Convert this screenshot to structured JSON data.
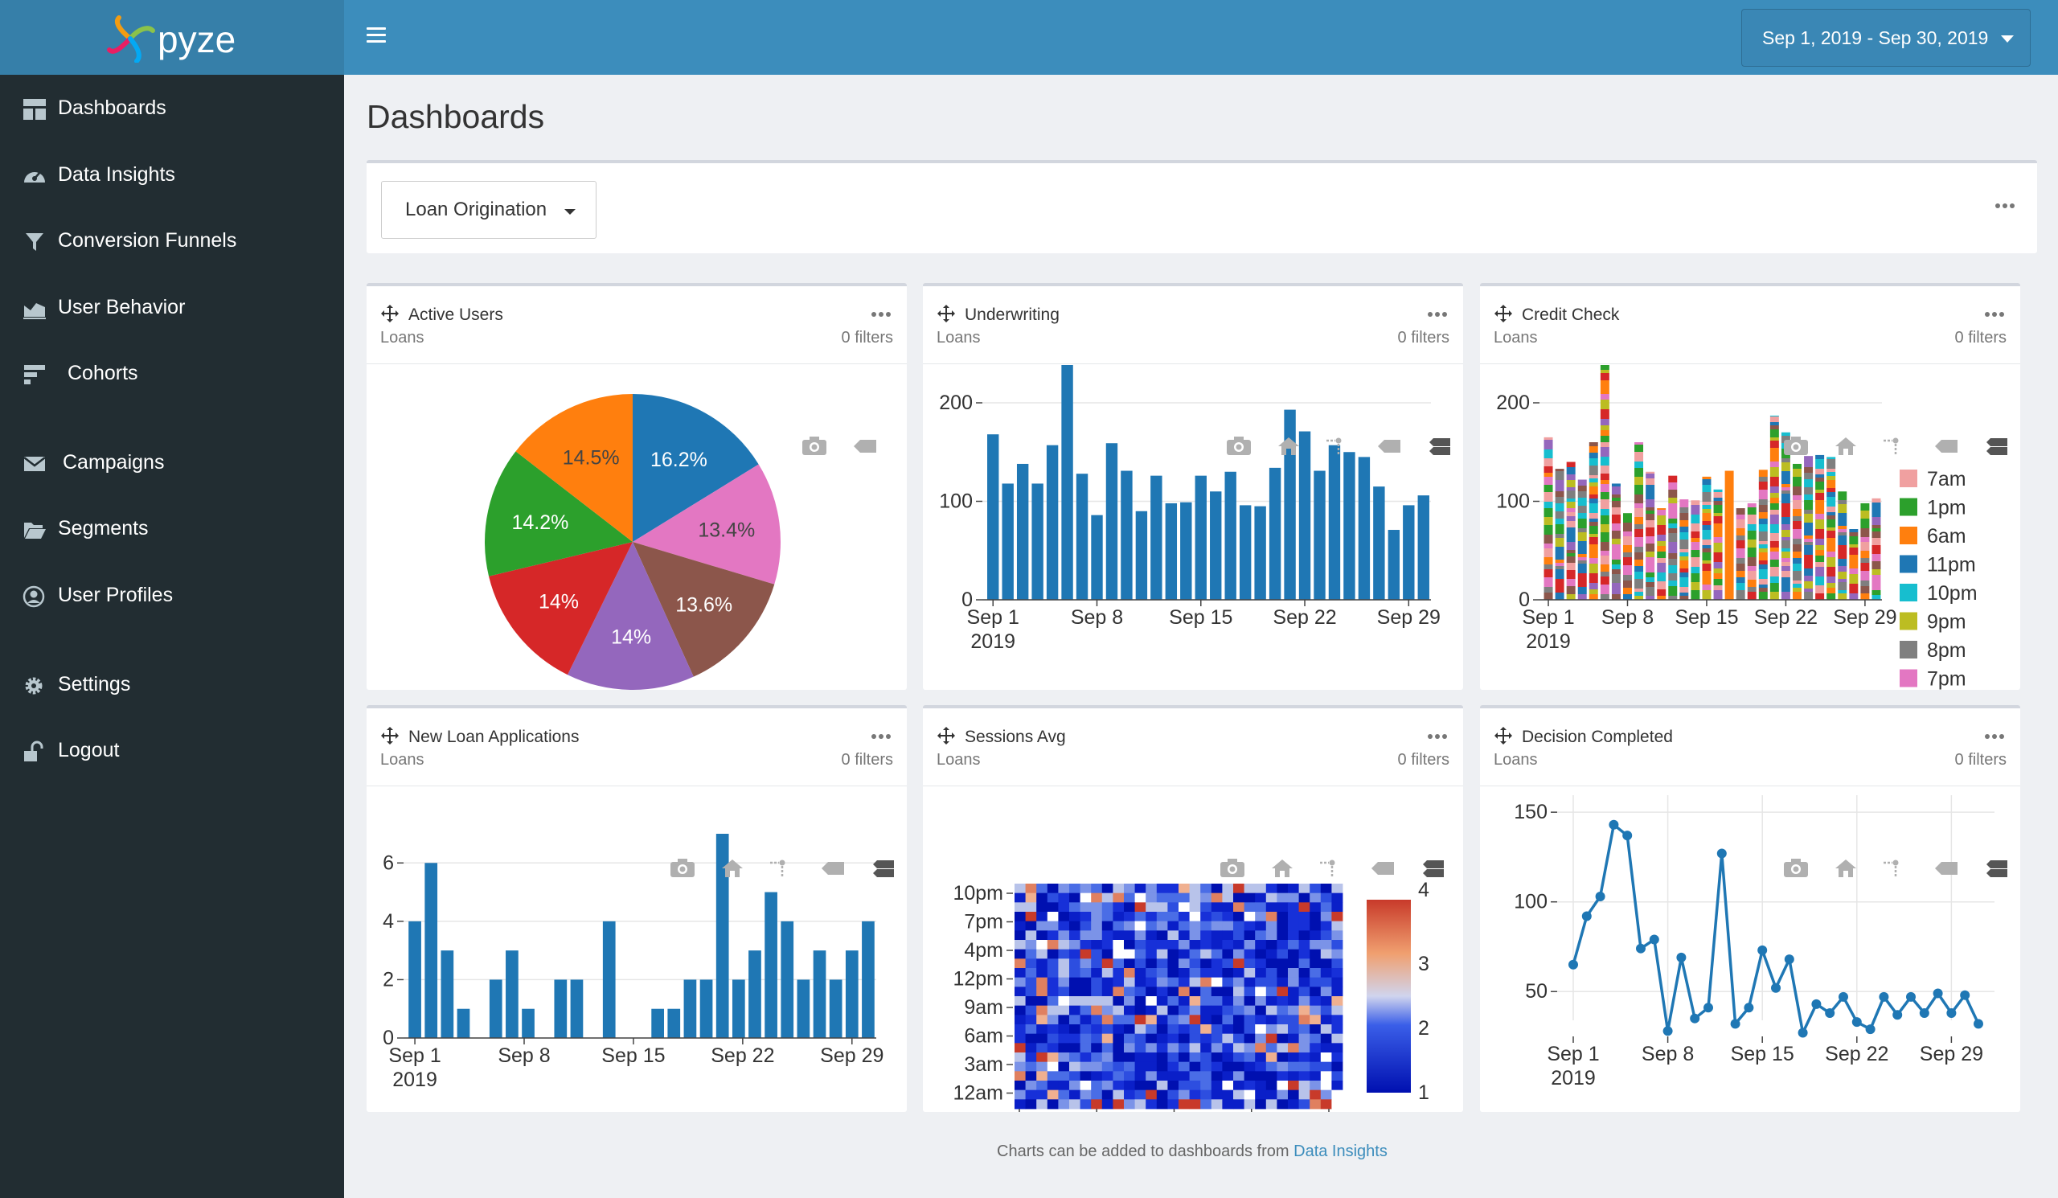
{
  "app": {
    "brand": "pyze"
  },
  "sidebar": {
    "items": [
      {
        "label": "Dashboards",
        "icon": "dashboard-icon"
      },
      {
        "label": "Data Insights",
        "icon": "gauge-icon"
      },
      {
        "label": "Conversion Funnels",
        "icon": "funnel-icon"
      },
      {
        "label": "User Behavior",
        "icon": "area-chart-icon"
      },
      {
        "label": "Cohorts",
        "icon": "cohort-icon"
      },
      {
        "label": "Campaigns",
        "icon": "envelope-icon"
      },
      {
        "label": "Segments",
        "icon": "folder-open-icon"
      },
      {
        "label": "User Profiles",
        "icon": "user-circle-icon"
      },
      {
        "label": "Settings",
        "icon": "gear-icon"
      },
      {
        "label": "Logout",
        "icon": "unlock-icon"
      }
    ]
  },
  "header": {
    "date_range": "Sep 1, 2019 - Sep 30, 2019"
  },
  "page": {
    "title": "Dashboards",
    "dashboard_selected": "Loan Origination"
  },
  "panels": [
    {
      "title": "Active Users",
      "subtitle": "Loans",
      "filters": "0 filters"
    },
    {
      "title": "Underwriting",
      "subtitle": "Loans",
      "filters": "0 filters"
    },
    {
      "title": "Credit Check",
      "subtitle": "Loans",
      "filters": "0 filters"
    },
    {
      "title": "New Loan Applications",
      "subtitle": "Loans",
      "filters": "0 filters"
    },
    {
      "title": "Sessions Avg",
      "subtitle": "Loans",
      "filters": "0 filters"
    },
    {
      "title": "Decision Completed",
      "subtitle": "Loans",
      "filters": "0 filters"
    }
  ],
  "footer": {
    "text": "Charts can be added to dashboards from ",
    "link": "Data Insights"
  },
  "colors": {
    "blue": "#1f77b4",
    "orange": "#ff7f0e",
    "green": "#2ca02c",
    "red": "#d62728",
    "purple": "#9467bd",
    "brown": "#8c564b",
    "pink": "#e377c2",
    "gray": "#7f7f7f",
    "olive": "#bcbd22",
    "cyan": "#17becf"
  },
  "chart_data": [
    {
      "id": "active-users",
      "type": "pie",
      "labels": [
        "16.2%",
        "13.4%",
        "13.6%",
        "14%",
        "14%",
        "14.2%",
        "14.5%"
      ],
      "values": [
        16.2,
        13.4,
        13.6,
        14,
        14,
        14.2,
        14.5
      ],
      "colors": [
        "#1f77b4",
        "#e377c2",
        "#8c564b",
        "#9467bd",
        "#d62728",
        "#2ca02c",
        "#ff7f0e"
      ]
    },
    {
      "id": "underwriting",
      "type": "bar",
      "x_ticks": [
        "Sep 1\n2019",
        "Sep 8",
        "Sep 15",
        "Sep 22",
        "Sep 29"
      ],
      "y_ticks": [
        0,
        100,
        200
      ],
      "ylim": [
        0,
        240
      ],
      "values": [
        168,
        118,
        138,
        118,
        157,
        240,
        128,
        86,
        159,
        131,
        90,
        126,
        98,
        99,
        126,
        110,
        130,
        96,
        95,
        134,
        193,
        171,
        131,
        157,
        150,
        145,
        115,
        71,
        96,
        106
      ]
    },
    {
      "id": "credit-check",
      "type": "bar",
      "stacked": true,
      "x_ticks": [
        "Sep 1\n2019",
        "Sep 8",
        "Sep 15",
        "Sep 22",
        "Sep 29"
      ],
      "y_ticks": [
        0,
        100,
        200
      ],
      "ylim": [
        0,
        240
      ],
      "legend": [
        "7am",
        "1pm",
        "6am",
        "11pm",
        "10pm",
        "9pm",
        "8pm",
        "7pm"
      ],
      "legend_colors": [
        "#f0a0a0",
        "#2ca02c",
        "#ff7f0e",
        "#1f77b4",
        "#17becf",
        "#bcbd22",
        "#7f7f7f",
        "#e377c2"
      ],
      "totals": [
        165,
        133,
        140,
        122,
        160,
        240,
        118,
        88,
        160,
        130,
        93,
        126,
        102,
        101,
        125,
        112,
        131,
        93,
        98,
        132,
        187,
        170,
        138,
        146,
        147,
        145,
        110,
        72,
        98,
        103
      ]
    },
    {
      "id": "new-loan-applications",
      "type": "bar",
      "x_ticks": [
        "Sep 1\n2019",
        "Sep 8",
        "Sep 15",
        "Sep 22",
        "Sep 29"
      ],
      "y_ticks": [
        0,
        2,
        4,
        6
      ],
      "ylim": [
        0,
        7
      ],
      "values": [
        4,
        6,
        3,
        1,
        0,
        2,
        3,
        1,
        0,
        2,
        2,
        0,
        4,
        0,
        0,
        1,
        1,
        2,
        2,
        7,
        2,
        3,
        5,
        4,
        2,
        3,
        2,
        3,
        4
      ]
    },
    {
      "id": "sessions-avg",
      "type": "heatmap",
      "x_ticks": [
        "Sep 1\n2019",
        "Sep 8",
        "Sep 15",
        "Sep 22",
        "Sep 29"
      ],
      "y_ticks": [
        "10pm",
        "7pm",
        "4pm",
        "12pm",
        "9am",
        "6am",
        "3am",
        "12am"
      ],
      "colorbar_ticks": [
        1,
        2,
        3,
        4
      ]
    },
    {
      "id": "decision-completed",
      "type": "line",
      "x_ticks": [
        "Sep 1\n2019",
        "Sep 8",
        "Sep 15",
        "Sep 22",
        "Sep 29"
      ],
      "y_ticks": [
        50,
        100,
        150
      ],
      "ylim": [
        25,
        155
      ],
      "values": [
        65,
        92,
        103,
        143,
        137,
        74,
        79,
        28,
        69,
        35,
        41,
        127,
        32,
        41,
        73,
        52,
        68,
        27,
        43,
        38,
        47,
        33,
        29,
        47,
        37,
        47,
        38,
        49,
        38,
        48,
        32
      ]
    }
  ]
}
